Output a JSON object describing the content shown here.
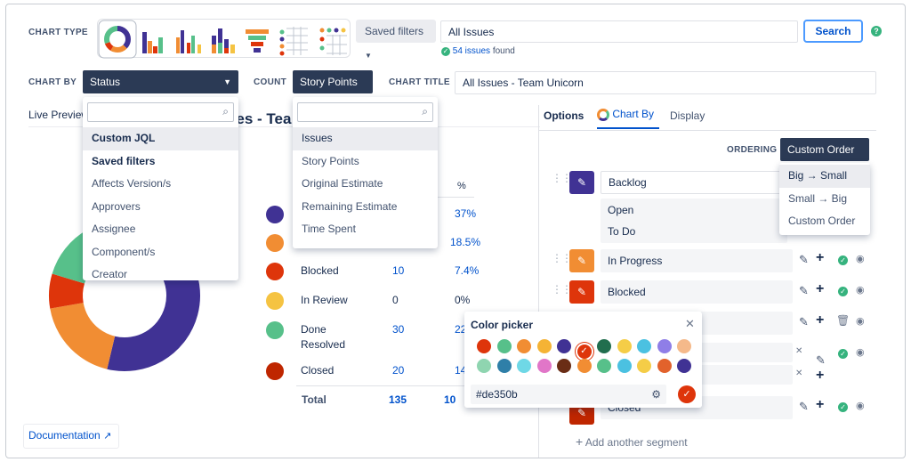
{
  "header": {
    "chart_type_label": "CHART TYPE",
    "saved_filters_label": "Saved filters",
    "jql_value": "All Issues",
    "search_label": "Search",
    "issues_count": "54 issues",
    "issues_found": "found",
    "help_icon": "?"
  },
  "row2": {
    "chart_by_label": "CHART BY",
    "chart_by_value": "Status",
    "count_label": "COUNT",
    "count_value": "Story Points",
    "chart_title_label": "CHART TITLE",
    "chart_title_value": "All Issues - Team Unicorn"
  },
  "chart_by_menu": {
    "items": [
      "Custom JQL",
      "Saved filters",
      "Affects Version/s",
      "Approvers",
      "Assignee",
      "Component/s",
      "Creator"
    ]
  },
  "count_menu": {
    "items": [
      "Issues",
      "Story Points",
      "Original Estimate",
      "Remaining Estimate",
      "Time Spent"
    ]
  },
  "preview": {
    "live_preview_label": "Live Preview",
    "title_fragment": "ues - Tea",
    "percent_header": "%",
    "documentation_label": "Documentation"
  },
  "legend_rows": [
    {
      "label": "",
      "count": "",
      "pct": "37%",
      "color": "#403294"
    },
    {
      "label": "",
      "count": "",
      "pct": "18.5%",
      "color": "#f18d33"
    },
    {
      "label": "Blocked",
      "count": "10",
      "pct": "7.4%",
      "color": "#de350b"
    },
    {
      "label": "In Review",
      "count": "0",
      "pct": "0%",
      "color": "#f5c342"
    },
    {
      "label": "Done",
      "label2": "Resolved",
      "count": "30",
      "pct": "22.",
      "color": "#57c08a"
    },
    {
      "label": "Closed",
      "count": "20",
      "pct": "14.",
      "color": "#bf2600"
    }
  ],
  "total": {
    "label": "Total",
    "count": "135",
    "pct": "10"
  },
  "right_panel": {
    "tabs": [
      "Options",
      "Chart By",
      "Display"
    ],
    "ordering_label": "ORDERING",
    "ordering_value": "Custom Order",
    "ordering_menu": [
      "Big → Small",
      "Small → Big",
      "Custom Order"
    ],
    "segments": {
      "backlog": "Backlog",
      "open": "Open",
      "todo": "To Do",
      "in_progress": "In Progress",
      "blocked": "Blocked",
      "closed": "Closed"
    },
    "add_segment": "Add another segment"
  },
  "color_picker": {
    "title": "Color picker",
    "hex_value": "#de350b",
    "swatches_row1": [
      "#de350b",
      "#57c08a",
      "#f18d33",
      "#f5b335",
      "#403294",
      "#de350b",
      "#216e4e",
      "#f5cd47",
      "#4bc1e1",
      "#8f7ee7",
      "#f5b98a"
    ],
    "swatches_row2": [
      "#8fd5b0",
      "#2f7fa8",
      "#6fd8e6",
      "#e176c8",
      "#6a2d15",
      "#f18d33",
      "#57c08a",
      "#4bc1e1",
      "#f5cd47",
      "#e2622c",
      "#403294"
    ]
  },
  "chart_data": {
    "type": "pie",
    "categories": [
      "Backlog",
      "In Progress",
      "Blocked",
      "In Review",
      "Done",
      "Closed"
    ],
    "values": [
      50,
      25,
      10,
      0,
      30,
      20
    ],
    "colors": [
      "#403294",
      "#f18d33",
      "#de350b",
      "#f5c342",
      "#57c08a",
      "#bf2600"
    ]
  }
}
